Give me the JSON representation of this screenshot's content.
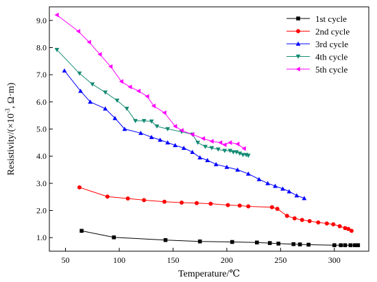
{
  "chart_data": {
    "type": "line",
    "xlabel": "Temperature/℃",
    "ylabel_parts": [
      "Resistivity/(×10",
      "-3",
      ", Ω·m)"
    ],
    "xlim": [
      35,
      332
    ],
    "ylim": [
      0.5,
      9.5
    ],
    "x_ticks": [
      50,
      100,
      150,
      200,
      250,
      300
    ],
    "y_ticks": [
      1.0,
      2.0,
      3.0,
      4.0,
      5.0,
      6.0,
      7.0,
      8.0,
      9.0
    ],
    "legend_position": "top-right",
    "series": [
      {
        "name": "1st cycle",
        "color": "#000000",
        "marker": "square",
        "points": [
          [
            65,
            1.25
          ],
          [
            95,
            1.01
          ],
          [
            143,
            0.91
          ],
          [
            175,
            0.86
          ],
          [
            205,
            0.84
          ],
          [
            228,
            0.82
          ],
          [
            240,
            0.8
          ],
          [
            248,
            0.78
          ],
          [
            262,
            0.76
          ],
          [
            268,
            0.75
          ],
          [
            276,
            0.74
          ],
          [
            300,
            0.72
          ],
          [
            306,
            0.72
          ],
          [
            310,
            0.72
          ],
          [
            315,
            0.72
          ],
          [
            319,
            0.72
          ],
          [
            322,
            0.72
          ]
        ]
      },
      {
        "name": "2nd cycle",
        "color": "#ff0000",
        "marker": "circle",
        "points": [
          [
            63,
            2.85
          ],
          [
            89,
            2.51
          ],
          [
            108,
            2.44
          ],
          [
            123,
            2.38
          ],
          [
            142,
            2.32
          ],
          [
            158,
            2.29
          ],
          [
            172,
            2.27
          ],
          [
            185,
            2.25
          ],
          [
            201,
            2.2
          ],
          [
            212,
            2.18
          ],
          [
            220,
            2.15
          ],
          [
            242,
            2.12
          ],
          [
            247,
            2.06
          ],
          [
            256,
            1.8
          ],
          [
            263,
            1.71
          ],
          [
            270,
            1.65
          ],
          [
            277,
            1.61
          ],
          [
            285,
            1.56
          ],
          [
            293,
            1.52
          ],
          [
            299,
            1.49
          ],
          [
            305,
            1.42
          ],
          [
            310,
            1.35
          ],
          [
            313,
            1.32
          ],
          [
            316,
            1.25
          ]
        ]
      },
      {
        "name": "3rd cycle",
        "color": "#0000ff",
        "marker": "triangle-up",
        "points": [
          [
            49,
            7.15
          ],
          [
            64,
            6.4
          ],
          [
            73,
            6.0
          ],
          [
            87,
            5.75
          ],
          [
            96,
            5.4
          ],
          [
            105,
            5.0
          ],
          [
            120,
            4.85
          ],
          [
            130,
            4.7
          ],
          [
            138,
            4.6
          ],
          [
            145,
            4.5
          ],
          [
            152,
            4.4
          ],
          [
            160,
            4.3
          ],
          [
            168,
            4.15
          ],
          [
            175,
            3.95
          ],
          [
            182,
            3.85
          ],
          [
            190,
            3.7
          ],
          [
            200,
            3.6
          ],
          [
            210,
            3.5
          ],
          [
            220,
            3.35
          ],
          [
            230,
            3.15
          ],
          [
            238,
            3.0
          ],
          [
            245,
            2.9
          ],
          [
            252,
            2.8
          ],
          [
            258,
            2.7
          ],
          [
            265,
            2.55
          ],
          [
            272,
            2.45
          ]
        ]
      },
      {
        "name": "4th cycle",
        "color": "#138a72",
        "marker": "triangle-down",
        "points": [
          [
            42,
            7.92
          ],
          [
            63,
            7.05
          ],
          [
            75,
            6.65
          ],
          [
            87,
            6.35
          ],
          [
            98,
            6.05
          ],
          [
            107,
            5.75
          ],
          [
            115,
            5.3
          ],
          [
            123,
            5.3
          ],
          [
            130,
            5.28
          ],
          [
            135,
            5.1
          ],
          [
            145,
            5.0
          ],
          [
            158,
            4.9
          ],
          [
            168,
            4.8
          ],
          [
            173,
            4.5
          ],
          [
            180,
            4.35
          ],
          [
            186,
            4.3
          ],
          [
            192,
            4.25
          ],
          [
            198,
            4.2
          ],
          [
            203,
            4.2
          ],
          [
            206,
            4.15
          ],
          [
            209,
            4.15
          ],
          [
            212,
            4.1
          ],
          [
            215,
            4.05
          ],
          [
            218,
            4.05
          ],
          [
            220,
            4.02
          ]
        ]
      },
      {
        "name": "5th cycle",
        "color": "#ff00ff",
        "marker": "triangle-left",
        "points": [
          [
            42,
            9.2
          ],
          [
            62,
            8.6
          ],
          [
            72,
            8.2
          ],
          [
            82,
            7.75
          ],
          [
            92,
            7.3
          ],
          [
            102,
            6.75
          ],
          [
            110,
            6.55
          ],
          [
            118,
            6.4
          ],
          [
            126,
            6.2
          ],
          [
            132,
            5.85
          ],
          [
            142,
            5.6
          ],
          [
            152,
            5.1
          ],
          [
            158,
            4.95
          ],
          [
            168,
            4.8
          ],
          [
            178,
            4.65
          ],
          [
            186,
            4.55
          ],
          [
            194,
            4.5
          ],
          [
            198,
            4.42
          ],
          [
            203,
            4.5
          ],
          [
            210,
            4.45
          ],
          [
            216,
            4.28
          ]
        ]
      }
    ]
  }
}
